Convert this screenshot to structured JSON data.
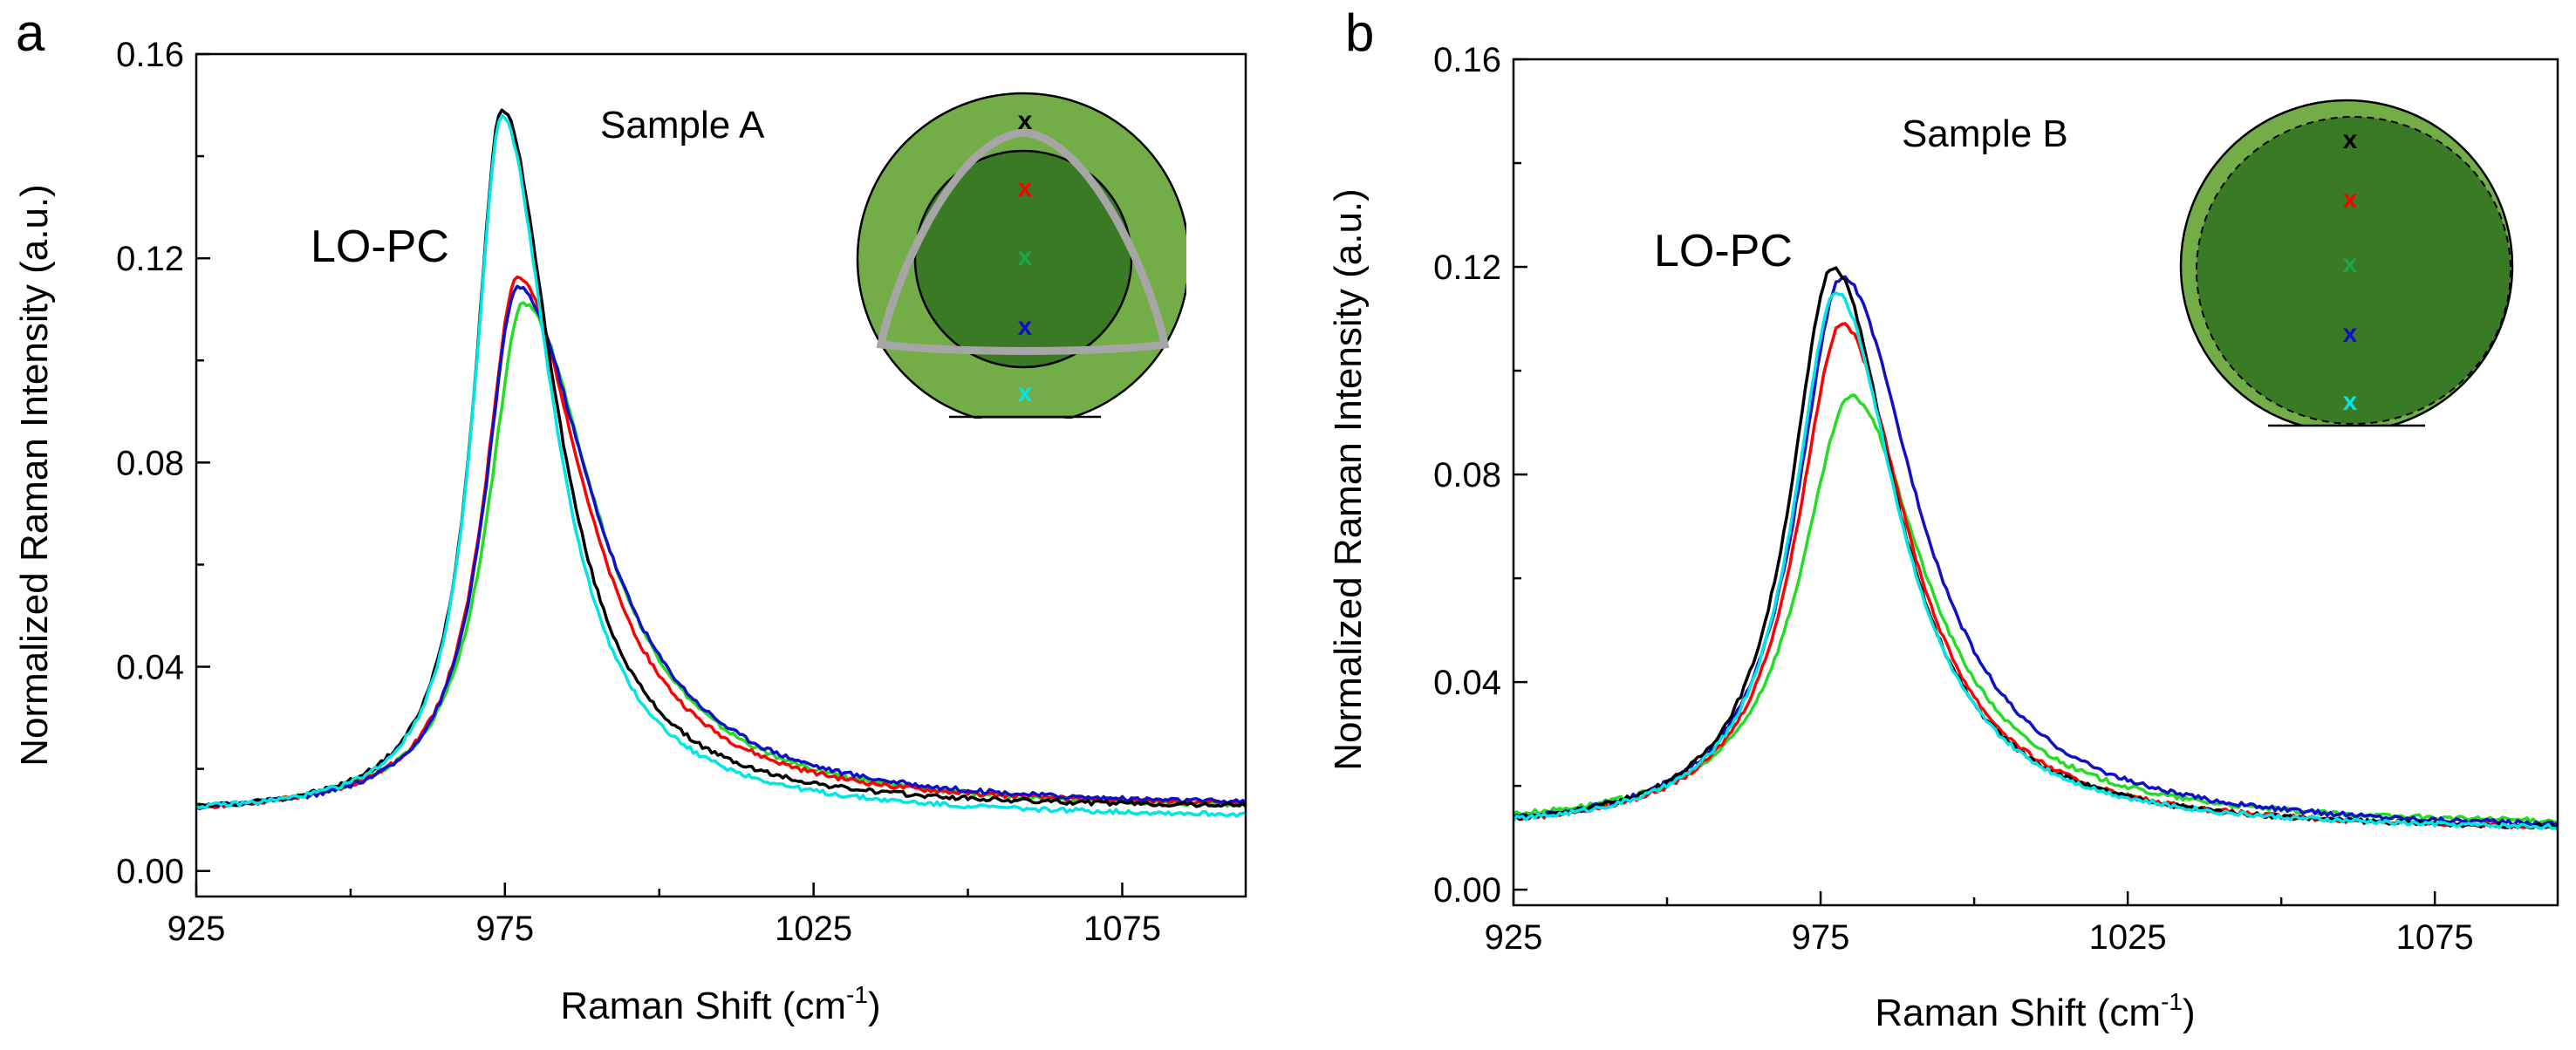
{
  "chart_data": [
    {
      "type": "line",
      "panel_label": "a",
      "title": "Sample A",
      "annotation": "LO-PC",
      "xlabel": "Raman Shift (cm",
      "xlabel_sup": "-1",
      "xlabel_end": ")",
      "ylabel": "Normalized Raman Intensity (a.u.)",
      "xlim": [
        925,
        1095
      ],
      "ylim": [
        -0.005,
        0.16
      ],
      "xticks": [
        925,
        975,
        1025,
        1075
      ],
      "xtick_labels": [
        "925",
        "975",
        "1025",
        "1075"
      ],
      "yticks": [
        0.0,
        0.04,
        0.08,
        0.12,
        0.16
      ],
      "ytick_labels": [
        "0.00",
        "0.04",
        "0.08",
        "0.12",
        "0.16"
      ],
      "series": [
        {
          "name": "black",
          "color": "#000000",
          "peak_x": 974.5,
          "peak_y": 0.149,
          "baseline": 0.011,
          "slope": 5e-06,
          "hwhm_left": 5.5,
          "hwhm_right": 10.5
        },
        {
          "name": "red",
          "color": "#ff0000",
          "peak_x": 977.0,
          "peak_y": 0.116,
          "baseline": 0.011,
          "slope": 6e-06,
          "hwhm_left": 6.5,
          "hwhm_right": 13.5
        },
        {
          "name": "green",
          "color": "#22dd22",
          "peak_x": 978.0,
          "peak_y": 0.111,
          "baseline": 0.011,
          "slope": 3e-06,
          "hwhm_left": 7.0,
          "hwhm_right": 14.5
        },
        {
          "name": "blue",
          "color": "#1010c8",
          "peak_x": 977.0,
          "peak_y": 0.114,
          "baseline": 0.011,
          "slope": 5.5e-06,
          "hwhm_left": 6.5,
          "hwhm_right": 15.0
        },
        {
          "name": "cyan",
          "color": "#00e5e5",
          "peak_x": 974.5,
          "peak_y": 0.148,
          "baseline": 0.011,
          "slope": -5e-06,
          "hwhm_left": 5.5,
          "hwhm_right": 10.0
        }
      ],
      "inset": {
        "description": "wafer map",
        "markers": [
          {
            "label": "x",
            "color": "#000000"
          },
          {
            "label": "x",
            "color": "#ff0000"
          },
          {
            "label": "x",
            "color": "#18a848"
          },
          {
            "label": "x",
            "color": "#1010c8"
          },
          {
            "label": "x",
            "color": "#00e5e5"
          }
        ]
      }
    },
    {
      "type": "line",
      "panel_label": "b",
      "title": "Sample B",
      "annotation": "LO-PC",
      "xlabel": "Raman Shift (cm",
      "xlabel_sup": "-1",
      "xlabel_end": ")",
      "ylabel": "Normalized Raman Intensity (a.u.)",
      "xlim": [
        925,
        1095
      ],
      "ylim": [
        -0.003,
        0.16
      ],
      "xticks": [
        925,
        975,
        1025,
        1075
      ],
      "xtick_labels": [
        "925",
        "975",
        "1025",
        "1075"
      ],
      "yticks": [
        0.0,
        0.04,
        0.08,
        0.12,
        0.16
      ],
      "ytick_labels": [
        "0.00",
        "0.04",
        "0.08",
        "0.12",
        "0.16"
      ],
      "series": [
        {
          "name": "black",
          "color": "#000000",
          "peak_x": 977.0,
          "peak_y": 0.12,
          "baseline": 0.011,
          "slope": 0.0,
          "hwhm_left": 8.5,
          "hwhm_right": 12.5
        },
        {
          "name": "red",
          "color": "#ff0000",
          "peak_x": 978.5,
          "peak_y": 0.109,
          "baseline": 0.011,
          "slope": 0.0,
          "hwhm_left": 9.0,
          "hwhm_right": 13.0
        },
        {
          "name": "green",
          "color": "#22dd22",
          "peak_x": 980.0,
          "peak_y": 0.095,
          "baseline": 0.012,
          "slope": 0.0,
          "hwhm_left": 10.0,
          "hwhm_right": 14.5
        },
        {
          "name": "blue",
          "color": "#1010c8",
          "peak_x": 978.5,
          "peak_y": 0.118,
          "baseline": 0.011,
          "slope": 0.0,
          "hwhm_left": 9.0,
          "hwhm_right": 15.0
        },
        {
          "name": "cyan",
          "color": "#00e5e5",
          "peak_x": 977.5,
          "peak_y": 0.115,
          "baseline": 0.011,
          "slope": 0.0,
          "hwhm_left": 8.5,
          "hwhm_right": 12.5
        }
      ],
      "inset": {
        "description": "wafer map",
        "markers": [
          {
            "label": "x",
            "color": "#000000"
          },
          {
            "label": "x",
            "color": "#ff0000"
          },
          {
            "label": "x",
            "color": "#18a848"
          },
          {
            "label": "x",
            "color": "#1010c8"
          },
          {
            "label": "x",
            "color": "#00e5e5"
          }
        ]
      }
    }
  ]
}
